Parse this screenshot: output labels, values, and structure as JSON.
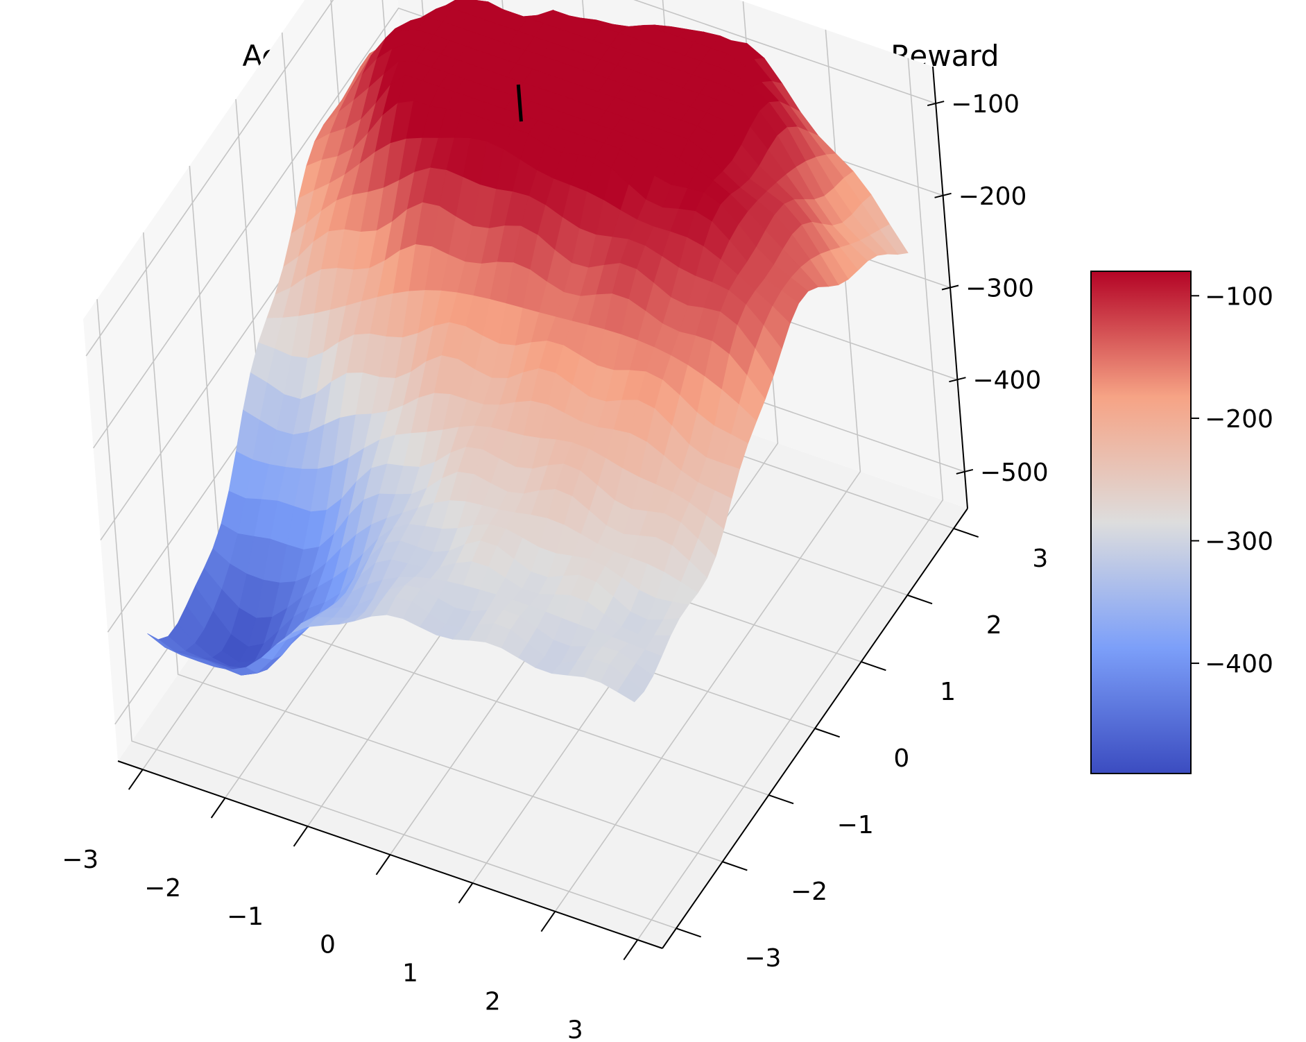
{
  "chart_data": {
    "type": "surface3d",
    "title": "Acrobot-v1 | Classic Control | Mean Episodic Reward",
    "xlabel": "",
    "ylabel": "",
    "zlabel": "",
    "x_ticks": [
      "−3",
      "−2",
      "−1",
      "0",
      "1",
      "2",
      "3"
    ],
    "y_ticks": [
      "−3",
      "−2",
      "−1",
      "0",
      "1",
      "2",
      "3"
    ],
    "z_ticks": [
      "−500",
      "−400",
      "−300",
      "−200",
      "−100"
    ],
    "xlim": [
      -3.3,
      3.3
    ],
    "ylim": [
      -3.3,
      3.3
    ],
    "zlim": [
      -540,
      -60
    ],
    "colormap": "coolwarm",
    "colorbar": {
      "range": [
        -490,
        -80
      ],
      "ticks": [
        "−400",
        "−300",
        "−200",
        "−100"
      ],
      "tick_values": [
        -400,
        -300,
        -200,
        -100
      ]
    },
    "grid": true,
    "max_marker": {
      "x": -0.6,
      "y": 1.3,
      "z": -95
    },
    "surface_peaks": [
      {
        "x": -0.6,
        "y": 1.3,
        "z": -95,
        "width": 1.3
      },
      {
        "x": 1.2,
        "y": 2.6,
        "z": -115,
        "width": 1.1
      },
      {
        "x": -2.2,
        "y": 1.8,
        "z": -165,
        "width": 1.2
      },
      {
        "x": 2.8,
        "y": 0.8,
        "z": -200,
        "width": 1.0
      },
      {
        "x": 1.6,
        "y": 0.2,
        "z": -215,
        "width": 1.1
      }
    ],
    "surface_dips": [
      {
        "x": -2.4,
        "y": -2.2,
        "z": -480,
        "width": 1.0
      },
      {
        "x": 0.9,
        "y": -1.2,
        "z": -290,
        "width": 0.7
      }
    ]
  }
}
